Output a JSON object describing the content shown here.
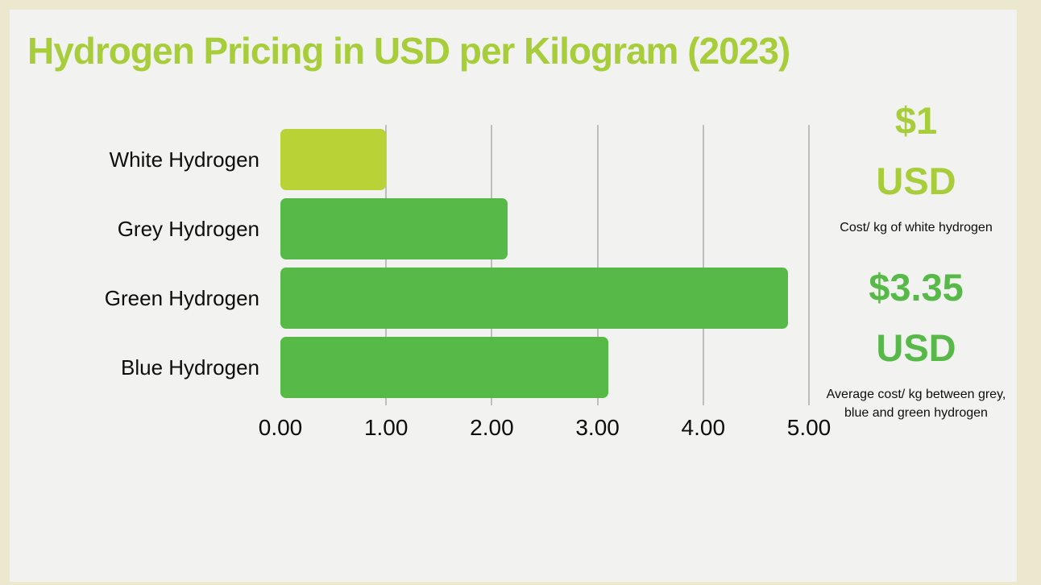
{
  "chart": {
    "title": "Hydrogen Pricing in USD per Kilogram (2023)"
  },
  "chart_data": {
    "type": "bar",
    "orientation": "horizontal",
    "title": "Hydrogen Pricing in USD per Kilogram (2023)",
    "categories": [
      "White Hydrogen",
      "Grey Hydrogen",
      "Green Hydrogen",
      "Blue Hydrogen"
    ],
    "values": [
      1.0,
      2.15,
      4.8,
      3.1
    ],
    "bar_colors": [
      "#b9d235",
      "#57b947",
      "#57b947",
      "#57b947"
    ],
    "xlabel": "",
    "ylabel": "",
    "xlim": [
      0,
      5
    ],
    "x_ticks": [
      0,
      1,
      2,
      3,
      4,
      5
    ],
    "x_tick_labels": [
      "0.00",
      "1.00",
      "2.00",
      "3.00",
      "4.00",
      "5.00"
    ],
    "grid": "vertical",
    "legend": "none"
  },
  "annotations": [
    {
      "value_lines": [
        "$1",
        "USD"
      ],
      "caption": "Cost/ kg of white hydrogen",
      "color": "#a7cd3a"
    },
    {
      "value_lines": [
        "$3.35",
        "USD"
      ],
      "caption": "Average cost/ kg between grey, blue and green hydrogen",
      "color": "#57b947"
    }
  ],
  "colors": {
    "background": "#ece8cd",
    "panel": "#f2f2f1",
    "title_green": "#a7cd3a",
    "lime_bar": "#b9d235",
    "green_bar": "#57b947",
    "gridline": "#bdbdbd",
    "text_dark": "#0d0d0d"
  }
}
